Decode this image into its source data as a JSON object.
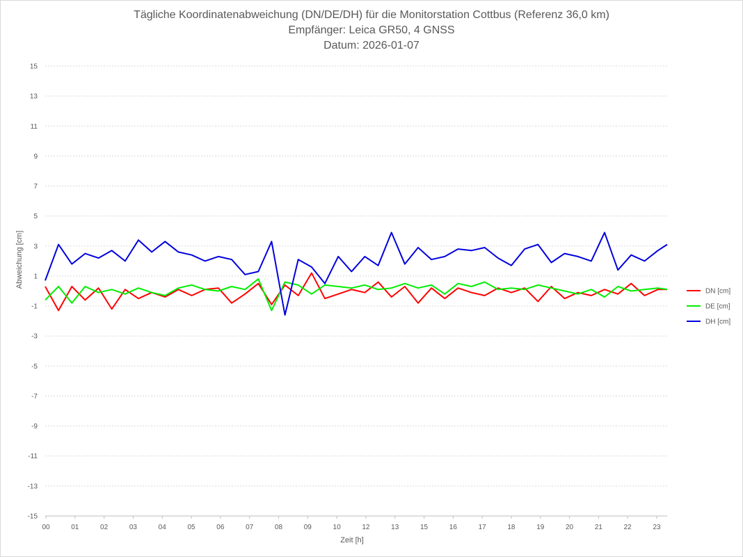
{
  "title": {
    "line1": "Tägliche Koordinatenabweichung (DN/DE/DH) für die Monitorstation Cottbus (Referenz 36,0 km)",
    "line2": "Empfänger: Leica GR50, 4 GNSS",
    "line3": "Datum: 2026-01-07"
  },
  "chart_data": {
    "type": "line",
    "title": "Tägliche Koordinatenabweichung (DN/DE/DH) für die Monitorstation Cottbus (Referenz 36,0 km)",
    "subtitle": "Empfänger: Leica GR50, 4 GNSS | Datum: 2026-01-07",
    "xlabel": "Zeit [h]",
    "ylabel": "Abweichung [cm]",
    "xlim": [
      0,
      23.35
    ],
    "ylim": [
      -15,
      15
    ],
    "y_ticks": [
      "15",
      "13",
      "11",
      "9",
      "7",
      "5",
      "3",
      "1",
      "-1",
      "-3",
      "-5",
      "-7",
      "-9",
      "-11",
      "-13",
      "-15"
    ],
    "x_ticks": [
      "00",
      "01",
      "02",
      "03",
      "04",
      "05",
      "06",
      "07",
      "08",
      "09",
      "10",
      "12",
      "13",
      "15",
      "16",
      "17",
      "18",
      "19",
      "20",
      "21",
      "22",
      "23"
    ],
    "grid": "horizontal dashed",
    "legend_position": "right",
    "series": [
      {
        "name": "DN [cm]",
        "color": "#ff0000",
        "x": [
          0,
          0.5,
          1,
          1.5,
          2,
          2.5,
          3,
          3.5,
          4,
          4.5,
          5,
          5.5,
          6,
          6.5,
          7,
          7.5,
          8,
          8.5,
          9,
          9.5,
          10,
          10.5,
          11,
          11.5,
          12,
          12.5,
          13,
          13.5,
          14,
          14.5,
          15,
          15.5,
          16,
          16.5,
          17,
          17.5,
          18,
          18.5,
          19,
          19.5,
          20,
          20.5,
          21,
          21.5,
          22,
          22.5,
          23,
          23.35
        ],
        "values": [
          0.3,
          -1.3,
          0.3,
          -0.6,
          0.2,
          -1.2,
          0.1,
          -0.5,
          -0.1,
          -0.4,
          0.1,
          -0.3,
          0.1,
          0.2,
          -0.8,
          -0.2,
          0.5,
          -0.9,
          0.4,
          -0.3,
          1.2,
          -0.5,
          -0.2,
          0.1,
          -0.1,
          0.6,
          -0.4,
          0.3,
          -0.8,
          0.2,
          -0.5,
          0.2,
          -0.1,
          -0.3,
          0.2,
          -0.1,
          0.2,
          -0.7,
          0.3,
          -0.5,
          -0.1,
          -0.3,
          0.1,
          -0.2,
          0.5,
          -0.3,
          0.1,
          0.1
        ]
      },
      {
        "name": "DE [cm]",
        "color": "#00ee00",
        "x": [
          0,
          0.5,
          1,
          1.5,
          2,
          2.5,
          3,
          3.5,
          4,
          4.5,
          5,
          5.5,
          6,
          6.5,
          7,
          7.5,
          8,
          8.5,
          9,
          9.5,
          10,
          10.5,
          11,
          11.5,
          12,
          12.5,
          13,
          13.5,
          14,
          14.5,
          15,
          15.5,
          16,
          16.5,
          17,
          17.5,
          18,
          18.5,
          19,
          19.5,
          20,
          20.5,
          21,
          21.5,
          22,
          22.5,
          23,
          23.35
        ],
        "values": [
          -0.6,
          0.3,
          -0.8,
          0.3,
          -0.1,
          0.1,
          -0.2,
          0.2,
          -0.1,
          -0.3,
          0.2,
          0.4,
          0.1,
          0,
          0.3,
          0.1,
          0.8,
          -1.3,
          0.6,
          0.4,
          -0.2,
          0.4,
          0.3,
          0.2,
          0.4,
          0.1,
          0.2,
          0.5,
          0.2,
          0.4,
          -0.2,
          0.5,
          0.3,
          0.6,
          0.1,
          0.2,
          0.1,
          0.4,
          0.2,
          0,
          -0.2,
          0.1,
          -0.4,
          0.3,
          0,
          0.1,
          0.2,
          0.1
        ]
      },
      {
        "name": "DH [cm]",
        "color": "#0000dd",
        "x": [
          0,
          0.5,
          1,
          1.5,
          2,
          2.5,
          3,
          3.5,
          4,
          4.5,
          5,
          5.5,
          6,
          6.5,
          7,
          7.5,
          8,
          8.5,
          9,
          9.5,
          10,
          10.5,
          11,
          11.5,
          12,
          12.5,
          13,
          13.5,
          14,
          14.5,
          15,
          15.5,
          16,
          16.5,
          17,
          17.5,
          18,
          18.5,
          19,
          19.5,
          20,
          20.5,
          21,
          21.5,
          22,
          22.5,
          23,
          23.35
        ],
        "values": [
          0.7,
          3.1,
          1.8,
          2.5,
          2.2,
          2.7,
          2.0,
          3.4,
          2.6,
          3.3,
          2.6,
          2.4,
          2.0,
          2.3,
          2.1,
          1.1,
          1.3,
          3.3,
          -1.6,
          2.1,
          1.6,
          0.5,
          2.3,
          1.3,
          2.3,
          1.7,
          3.9,
          1.8,
          2.9,
          2.1,
          2.3,
          2.8,
          2.7,
          2.9,
          2.2,
          1.7,
          2.8,
          3.1,
          1.9,
          2.5,
          2.3,
          2.0,
          3.9,
          1.4,
          2.4,
          2.0,
          2.7,
          3.1
        ]
      }
    ]
  }
}
